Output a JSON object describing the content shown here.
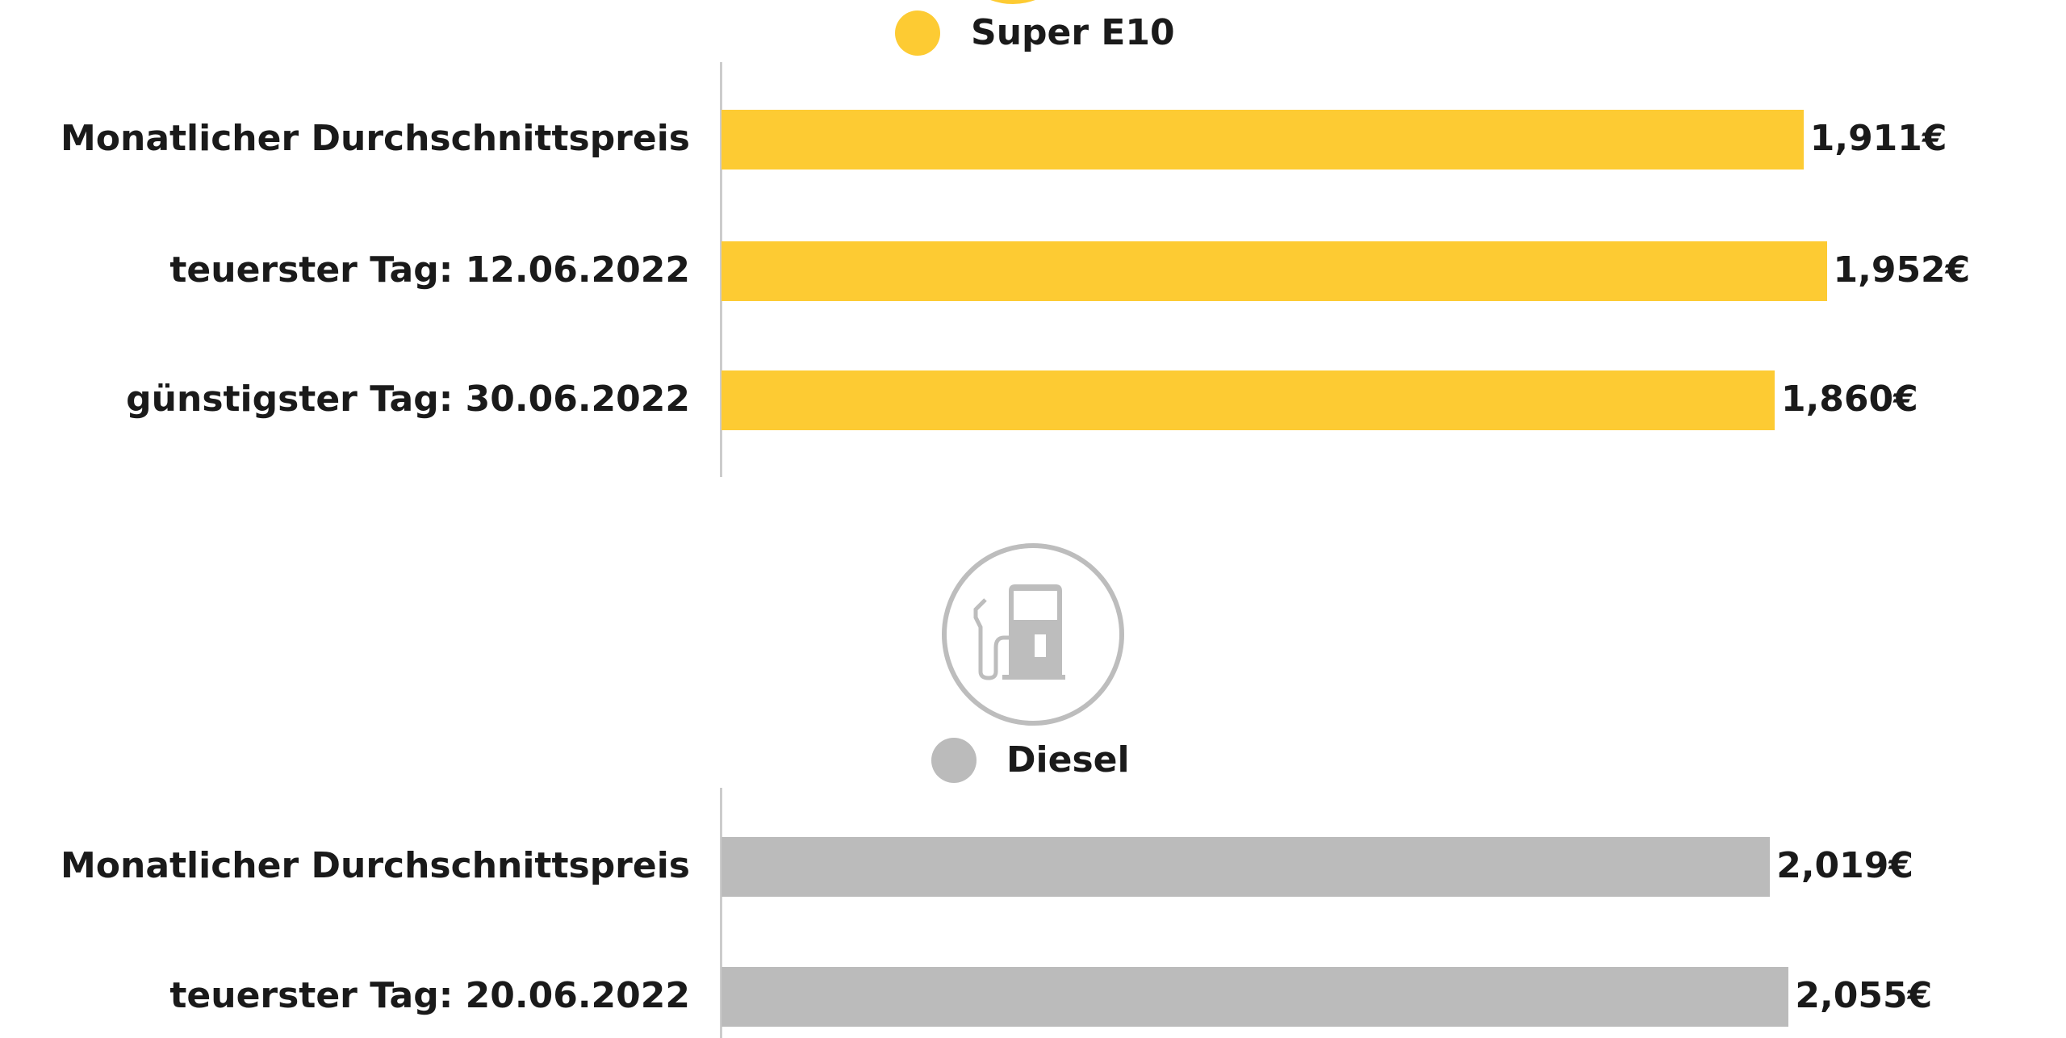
{
  "colors": {
    "e10": "#FDCB33",
    "diesel": "#BBBBBB",
    "axis": "#CCCCCC",
    "icon": "#BDBDBD"
  },
  "icons": {
    "top": "fuel-icon-yellow",
    "diesel": "fuel-pump-icon"
  },
  "chart_data": [
    {
      "type": "bar",
      "orientation": "horizontal",
      "legend": "Super E10",
      "categories": [
        "Monatlicher Durchschnittspreis",
        "teuerster Tag: 12.06.2022",
        "günstigster Tag: 30.06.2022"
      ],
      "values": [
        1.911,
        1.952,
        1.86
      ],
      "value_labels": [
        "1,911€",
        "1,952€",
        "1,860€"
      ],
      "xlim": [
        0,
        2.138
      ],
      "unit": "€"
    },
    {
      "type": "bar",
      "orientation": "horizontal",
      "legend": "Diesel",
      "categories": [
        "Monatlicher Durchschnittspreis",
        "teuerster Tag: 20.06.2022"
      ],
      "values": [
        2.019,
        2.055
      ],
      "value_labels": [
        "2,019€",
        "2,055€"
      ],
      "xlim": [
        0,
        2.331
      ],
      "unit": "€"
    }
  ]
}
